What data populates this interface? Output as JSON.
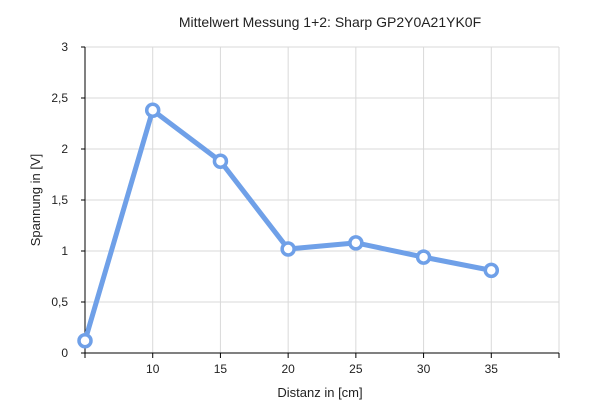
{
  "chart_data": {
    "type": "line",
    "title": "Mittelwert Messung 1+2:  Sharp GP2Y0A21YK0F",
    "xlabel": "Distanz in [cm]",
    "ylabel": "Spannung in [V]",
    "xlim": [
      5,
      40
    ],
    "ylim": [
      0,
      3
    ],
    "x_ticks": [
      10,
      15,
      20,
      25,
      30,
      35
    ],
    "x_tick_labels": [
      "10",
      "15",
      "20",
      "25",
      "30",
      "35"
    ],
    "x_minor_ticks": [
      5,
      10,
      15,
      20,
      25,
      30,
      35,
      40
    ],
    "y_ticks": [
      0,
      0.5,
      1,
      1.5,
      2,
      2.5,
      3
    ],
    "y_tick_labels": [
      "0",
      "0,5",
      "1",
      "1,5",
      "2",
      "2,5",
      "3"
    ],
    "grid": true,
    "legend": "none",
    "series": [
      {
        "x": [
          5,
          10,
          15,
          20,
          25,
          30,
          35
        ],
        "values": [
          0.12,
          2.38,
          1.88,
          1.02,
          1.08,
          0.94,
          0.81
        ],
        "color": "#6fa0e8"
      }
    ]
  }
}
